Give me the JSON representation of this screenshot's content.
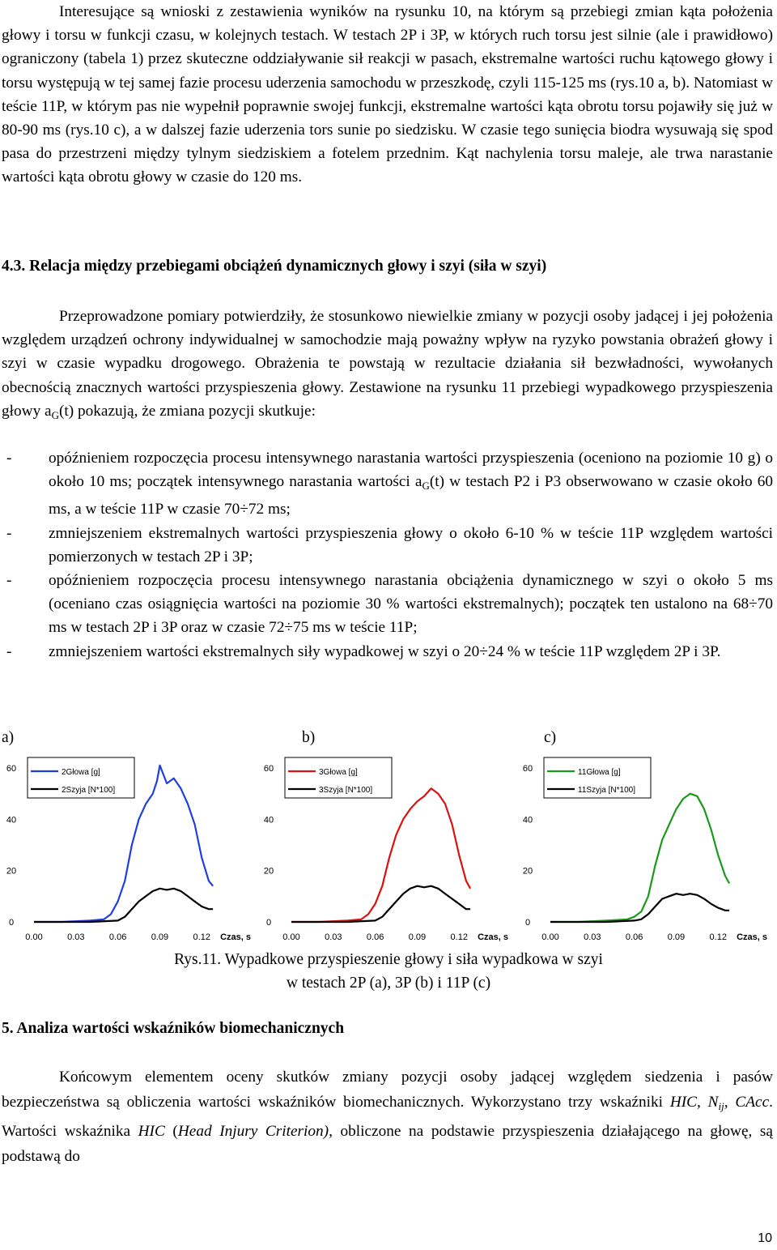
{
  "paragraph1": "Interesujące są wnioski z zestawienia wyników na rysunku 10, na którym są przebiegi zmian kąta położenia głowy i torsu w funkcji czasu, w kolejnych testach. W testach 2P i 3P, w których ruch torsu jest silnie (ale i prawidłowo) ograniczony (tabela 1) przez skuteczne oddziaływanie sił reakcji w pasach, ekstremalne wartości ruchu kątowego głowy i torsu występują w tej samej fazie procesu uderzenia samochodu w przeszkodę, czyli 115-125 ms (rys.10 a, b). Natomiast w teście 11P, w którym pas nie wypełnił poprawnie swojej funkcji, ekstremalne wartości kąta obrotu torsu pojawiły się już w 80-90 ms (rys.10 c), a w dalszej fazie uderzenia tors sunie po siedzisku. W czasie tego sunięcia biodra wysuwają się spod pasa do przestrzeni między tylnym siedziskiem a fotelem przednim. Kąt nachylenia torsu maleje, ale trwa narastanie wartości kąta obrotu głowy w czasie do 120 ms.",
  "heading_43": "4.3. Relacja między przebiegami obciążeń dynamicznych głowy i szyi (siła w szyi)",
  "paragraph2_before": "Przeprowadzone pomiary potwierdziły, że stosunkowo niewielkie zmiany w pozycji osoby jadącej i jej położenia względem urządzeń ochrony indywidualnej w samochodzie mają poważny wpływ na ryzyko powstania obrażeń głowy i szyi w czasie wypadku drogowego. Obrażenia te powstają w rezultacie działania sił bezwładności, wywołanych obecnością znacznych wartości przyspieszenia głowy. Zestawione na rysunku 11 przebiegi wypadkowego przyspieszenia głowy a",
  "paragraph2_sub": "G",
  "paragraph2_after": "(t) pokazują, że zmiana pozycji skutkuje:",
  "bullets": [
    {
      "dash": "-",
      "before": "opóźnieniem rozpoczęcia procesu intensywnego narastania wartości przyspieszenia (oceniono na poziomie 10 g) o około 10 ms; początek intensywnego narastania wartości a",
      "sub": "G",
      "after": "(t) w testach P2 i P3 obserwowano w czasie około 60 ms, a w teście 11P w czasie 70÷72 ms;"
    },
    {
      "dash": "-",
      "before": "zmniejszeniem ekstremalnych wartości przyspieszenia głowy o około 6-10 % w teście 11P względem wartości pomierzonych w testach 2P i 3P;",
      "sub": "",
      "after": ""
    },
    {
      "dash": "-",
      "before": "opóźnieniem rozpoczęcia procesu intensywnego narastania obciążenia dynamicznego w szyi o około 5 ms (oceniano czas osiągnięcia wartości na poziomie 30 % wartości ekstremalnych); początek ten ustalono na 68÷70 ms w testach 2P i 3P oraz w czasie 72÷75 ms w teście 11P;",
      "sub": "",
      "after": ""
    },
    {
      "dash": "-",
      "before": "zmniejszeniem wartości ekstremalnych siły wypadkowej w szyi o 20÷24 % w teście 11P względem 2P i 3P.",
      "sub": "",
      "after": ""
    }
  ],
  "panel_labels": [
    "a)",
    "b)",
    "c)"
  ],
  "chart_data": [
    {
      "type": "line",
      "title": "",
      "xlabel": "Czas, s",
      "ylabel": "",
      "xlim": [
        0.0,
        0.132
      ],
      "ylim": [
        0,
        60
      ],
      "x_ticks": [
        "0.00",
        "0.03",
        "0.06",
        "0.09",
        "0.12"
      ],
      "y_ticks": [
        "0",
        "20",
        "40",
        "60"
      ],
      "legend_position": "top-left",
      "series": [
        {
          "name": "2Głowa [g]",
          "color": "#1f3fdd",
          "x": [
            0.0,
            0.02,
            0.04,
            0.05,
            0.055,
            0.06,
            0.065,
            0.07,
            0.075,
            0.08,
            0.085,
            0.088,
            0.09,
            0.095,
            0.1,
            0.105,
            0.11,
            0.115,
            0.12,
            0.125,
            0.128
          ],
          "y": [
            0,
            0,
            0.5,
            1,
            3,
            8,
            16,
            30,
            40,
            46,
            50,
            55,
            61,
            54,
            56,
            52,
            46,
            38,
            25,
            16,
            14
          ]
        },
        {
          "name": "2Szyja [N*100]",
          "color": "#000000",
          "x": [
            0.0,
            0.02,
            0.04,
            0.06,
            0.065,
            0.07,
            0.075,
            0.08,
            0.085,
            0.09,
            0.095,
            0.1,
            0.105,
            0.11,
            0.115,
            0.12,
            0.125,
            0.128
          ],
          "y": [
            0,
            0,
            0,
            0.5,
            2,
            5,
            8,
            10,
            12,
            13,
            12.5,
            13,
            12,
            10,
            8,
            6,
            5,
            5
          ]
        }
      ]
    },
    {
      "type": "line",
      "title": "",
      "xlabel": "Czas, s",
      "ylabel": "",
      "xlim": [
        0.0,
        0.132
      ],
      "ylim": [
        0,
        60
      ],
      "x_ticks": [
        "0.00",
        "0.03",
        "0.06",
        "0.09",
        "0.12"
      ],
      "y_ticks": [
        "0",
        "20",
        "40",
        "60"
      ],
      "legend_position": "top-left",
      "series": [
        {
          "name": "3Głowa [g]",
          "color": "#dd1111",
          "x": [
            0.0,
            0.02,
            0.04,
            0.05,
            0.055,
            0.06,
            0.065,
            0.07,
            0.075,
            0.08,
            0.085,
            0.09,
            0.095,
            0.1,
            0.105,
            0.11,
            0.115,
            0.12,
            0.125,
            0.128
          ],
          "y": [
            0,
            0,
            0.5,
            1,
            3,
            7,
            14,
            25,
            34,
            40,
            44,
            47,
            49,
            52,
            50,
            46,
            38,
            26,
            16,
            13
          ]
        },
        {
          "name": "3Szyja [N*100]",
          "color": "#000000",
          "x": [
            0.0,
            0.02,
            0.04,
            0.06,
            0.065,
            0.07,
            0.075,
            0.08,
            0.085,
            0.09,
            0.095,
            0.1,
            0.105,
            0.11,
            0.115,
            0.12,
            0.125,
            0.128
          ],
          "y": [
            0,
            0,
            0,
            0.5,
            2,
            5,
            8,
            11,
            13,
            14,
            13.5,
            14,
            13,
            11,
            9,
            7,
            5,
            5
          ]
        }
      ]
    },
    {
      "type": "line",
      "title": "",
      "xlabel": "Czas, s",
      "ylabel": "",
      "xlim": [
        0.0,
        0.132
      ],
      "ylim": [
        0,
        60
      ],
      "x_ticks": [
        "0.00",
        "0.03",
        "0.06",
        "0.09",
        "0.12"
      ],
      "y_ticks": [
        "0",
        "20",
        "40",
        "60"
      ],
      "legend_position": "top-left",
      "series": [
        {
          "name": "11Głowa [g]",
          "color": "#1a9a1a",
          "x": [
            0.0,
            0.02,
            0.04,
            0.055,
            0.06,
            0.065,
            0.07,
            0.075,
            0.08,
            0.085,
            0.09,
            0.095,
            0.1,
            0.105,
            0.11,
            0.115,
            0.12,
            0.125,
            0.128
          ],
          "y": [
            0,
            0,
            0.5,
            1,
            2,
            4,
            10,
            22,
            32,
            38,
            44,
            48,
            50,
            49,
            44,
            36,
            26,
            18,
            15
          ]
        },
        {
          "name": "11Szyja [N*100]",
          "color": "#000000",
          "x": [
            0.0,
            0.02,
            0.04,
            0.06,
            0.065,
            0.07,
            0.075,
            0.08,
            0.085,
            0.09,
            0.095,
            0.1,
            0.105,
            0.11,
            0.115,
            0.12,
            0.125,
            0.128
          ],
          "y": [
            0,
            0,
            0,
            0.5,
            1,
            3,
            6,
            9,
            10,
            11,
            10.5,
            11,
            10.5,
            9,
            7,
            5.5,
            4.5,
            4.5
          ]
        }
      ]
    }
  ],
  "caption_line1": "Rys.11. Wypadkowe przyspieszenie głowy i siła wypadkowa w szyi",
  "caption_line2": "w testach 2P (a), 3P (b) i 11P (c)",
  "heading_5": "5. Analiza wartości wskaźników biomechanicznych",
  "paragraph3_before": "Końcowym elementem oceny skutków zmiany pozycji osoby jadącej względem siedzenia i pasów bezpieczeństwa są obliczenia wartości wskaźników biomechanicznych. Wykorzystano trzy wskaźniki ",
  "paragraph3_formula": "HIC, N",
  "paragraph3_formula_sub": "ij",
  "paragraph3_formula_end": ", CAcc",
  "paragraph3_mid": ". Wartości wskaźnika ",
  "paragraph3_hic": "HIC",
  "paragraph3_paren": " (",
  "paragraph3_italic": "Head Injury Criterion),",
  "paragraph3_after": " obliczone na podstawie przyspieszenia działającego na głowę, są podstawą do",
  "page_number": "10"
}
